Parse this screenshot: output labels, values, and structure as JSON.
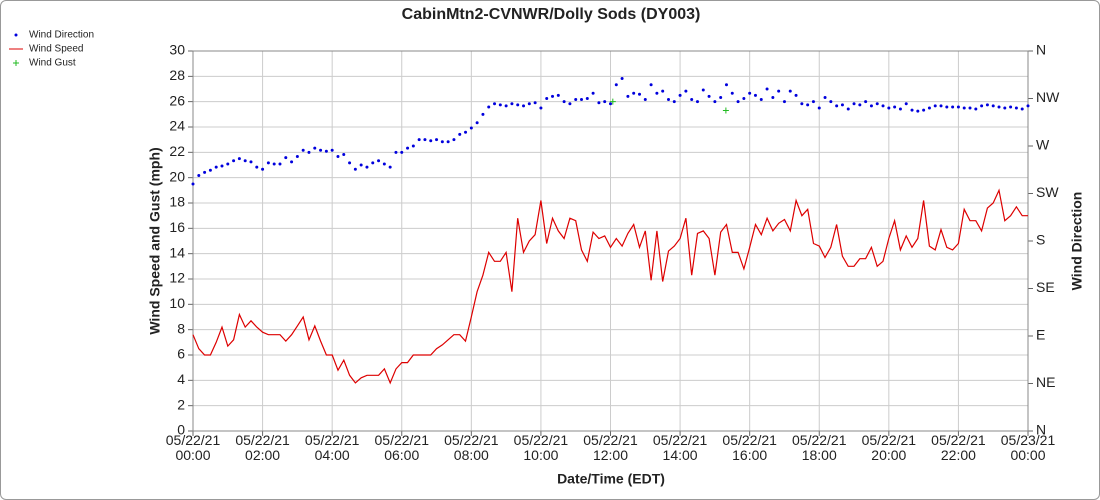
{
  "chart_data": {
    "type": "line",
    "title": "CabinMtn2-CVNWR/Dolly Sods (DY003)",
    "xlabel": "Date/Time (EDT)",
    "ylabel": "Wind Speed and Gust (mph)",
    "y2label": "Wind Direction",
    "xlim": [
      0,
      1440
    ],
    "xticks": [
      {
        "value": 0,
        "label": "05/22/21\n00:00"
      },
      {
        "value": 120,
        "label": "05/22/21\n02:00"
      },
      {
        "value": 240,
        "label": "05/22/21\n04:00"
      },
      {
        "value": 360,
        "label": "05/22/21\n06:00"
      },
      {
        "value": 480,
        "label": "05/22/21\n08:00"
      },
      {
        "value": 600,
        "label": "05/22/21\n10:00"
      },
      {
        "value": 720,
        "label": "05/22/21\n12:00"
      },
      {
        "value": 840,
        "label": "05/22/21\n14:00"
      },
      {
        "value": 960,
        "label": "05/22/21\n16:00"
      },
      {
        "value": 1080,
        "label": "05/22/21\n18:00"
      },
      {
        "value": 1200,
        "label": "05/22/21\n20:00"
      },
      {
        "value": 1320,
        "label": "05/22/21\n22:00"
      },
      {
        "value": 1440,
        "label": "05/23/21\n00:00"
      }
    ],
    "ylim": [
      0,
      30
    ],
    "yticks": [
      0,
      2,
      4,
      6,
      8,
      10,
      12,
      14,
      16,
      18,
      20,
      22,
      24,
      26,
      28,
      30
    ],
    "y2lim": [
      0,
      360
    ],
    "y2ticks": [
      {
        "value": 0,
        "label": "N"
      },
      {
        "value": 45,
        "label": "NE"
      },
      {
        "value": 90,
        "label": "E"
      },
      {
        "value": 135,
        "label": "SE"
      },
      {
        "value": 180,
        "label": "S"
      },
      {
        "value": 225,
        "label": "SW"
      },
      {
        "value": 270,
        "label": "W"
      },
      {
        "value": 315,
        "label": "NW"
      },
      {
        "value": 360,
        "label": "N"
      }
    ],
    "grid": true,
    "legend": "top-left",
    "x": [
      0,
      10,
      20,
      30,
      40,
      50,
      60,
      70,
      80,
      90,
      100,
      110,
      120,
      130,
      140,
      150,
      160,
      170,
      180,
      190,
      200,
      210,
      220,
      230,
      240,
      250,
      260,
      270,
      280,
      290,
      300,
      310,
      320,
      330,
      340,
      350,
      360,
      370,
      380,
      390,
      400,
      410,
      420,
      430,
      440,
      450,
      460,
      470,
      480,
      490,
      500,
      510,
      520,
      530,
      540,
      550,
      560,
      570,
      580,
      590,
      600,
      610,
      620,
      630,
      640,
      650,
      660,
      670,
      680,
      690,
      700,
      710,
      720,
      730,
      740,
      750,
      760,
      770,
      780,
      790,
      800,
      810,
      820,
      830,
      840,
      850,
      860,
      870,
      880,
      890,
      900,
      910,
      920,
      930,
      940,
      950,
      960,
      970,
      980,
      990,
      1000,
      1010,
      1020,
      1030,
      1040,
      1050,
      1060,
      1070,
      1080,
      1090,
      1100,
      1110,
      1120,
      1130,
      1140,
      1150,
      1160,
      1170,
      1180,
      1190,
      1200,
      1210,
      1220,
      1230,
      1240,
      1250,
      1260,
      1270,
      1280,
      1290,
      1300,
      1310,
      1320,
      1330,
      1340,
      1350,
      1360,
      1370,
      1380,
      1390,
      1400,
      1410,
      1420,
      1430,
      1440
    ],
    "series": [
      {
        "name": "Wind Direction",
        "kind": "points",
        "color": "#0000dd",
        "axis": "y2",
        "values": [
          234,
          242,
          245,
          247,
          250,
          251,
          253,
          256,
          258,
          256,
          255,
          250,
          248,
          254,
          253,
          253,
          259,
          255,
          260,
          266,
          264,
          268,
          266,
          265,
          266,
          260,
          262,
          254,
          248,
          252,
          250,
          254,
          256,
          253,
          250,
          264,
          264,
          268,
          270,
          276,
          276,
          275,
          276,
          274,
          274,
          276,
          281,
          283,
          287,
          292,
          300,
          307,
          310,
          309,
          308,
          310,
          309,
          308,
          310,
          311,
          306,
          315,
          317,
          318,
          312,
          310,
          314,
          314,
          315,
          320,
          311,
          312,
          310,
          328,
          334,
          317,
          320,
          319,
          314,
          328,
          320,
          322,
          314,
          312,
          318,
          322,
          314,
          312,
          323,
          317,
          312,
          316,
          328,
          320,
          312,
          315,
          320,
          318,
          314,
          324,
          316,
          322,
          312,
          322,
          318,
          310,
          309,
          312,
          306,
          316,
          312,
          308,
          309,
          305,
          310,
          309,
          312,
          308,
          310,
          308,
          306,
          307,
          305,
          310,
          304,
          303,
          304,
          306,
          308,
          308,
          307,
          307,
          307,
          306,
          306,
          305,
          308,
          309,
          308,
          307,
          306,
          307,
          306,
          305,
          308
        ]
      },
      {
        "name": "Wind Speed",
        "kind": "line",
        "color": "#dd0000",
        "values": [
          7.6,
          6.5,
          6.0,
          6.0,
          7.0,
          8.2,
          6.7,
          7.2,
          9.2,
          8.2,
          8.7,
          8.2,
          7.8,
          7.6,
          7.6,
          7.6,
          7.1,
          7.6,
          8.3,
          9.0,
          7.2,
          8.3,
          7.1,
          6.0,
          6.0,
          4.8,
          5.6,
          4.4,
          3.8,
          4.2,
          4.4,
          4.4,
          4.4,
          4.9,
          3.8,
          4.9,
          5.4,
          5.4,
          6.0,
          6.0,
          6.0,
          6.0,
          6.5,
          6.8,
          7.2,
          7.6,
          7.6,
          7.1,
          9.0,
          11.0,
          12.3,
          14.1,
          13.4,
          13.4,
          14.1,
          11.0,
          16.8,
          14.1,
          15.0,
          15.5,
          18.2,
          14.8,
          16.8,
          15.8,
          15.2,
          16.8,
          16.6,
          14.3,
          13.4,
          15.7,
          15.2,
          15.4,
          14.5,
          15.2,
          14.6,
          15.6,
          16.3,
          14.5,
          15.8,
          11.9,
          15.8,
          11.8,
          14.2,
          14.6,
          15.2,
          16.8,
          12.3,
          15.6,
          15.8,
          15.2,
          12.3,
          15.7,
          16.3,
          14.1,
          14.1,
          12.8,
          14.5,
          16.3,
          15.5,
          16.8,
          15.8,
          16.4,
          16.7,
          15.8,
          18.2,
          17.0,
          17.5,
          14.8,
          14.6,
          13.7,
          14.5,
          16.3,
          13.8,
          13.0,
          13.0,
          13.6,
          13.6,
          14.5,
          13.0,
          13.4,
          15.2,
          16.6,
          14.3,
          15.4,
          14.5,
          15.2,
          18.2,
          14.6,
          14.3,
          15.9,
          14.5,
          14.3,
          14.8,
          17.5,
          16.6,
          16.6,
          15.8,
          17.6,
          18.0,
          19.0,
          16.6,
          17.0,
          17.7,
          17.0,
          17.0
        ]
      },
      {
        "name": "Wind Gust",
        "kind": "plus",
        "color": "#22bb22",
        "x": [
          724,
          919
        ],
        "values": [
          26.0,
          25.3
        ]
      }
    ]
  }
}
